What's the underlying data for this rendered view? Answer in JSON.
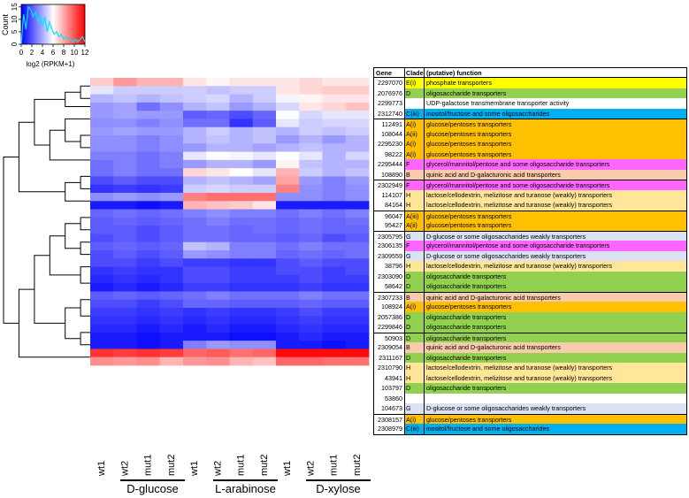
{
  "chart_data": {
    "type": "heatmap",
    "title": "",
    "colorscale": {
      "low": "#0000ff",
      "mid": "#ffffff",
      "high": "#ff0000"
    },
    "color_key": {
      "ylabel": "Count",
      "xlabel": "log2 (RPKM+1)",
      "x_ticks": [
        "0",
        "2",
        "4",
        "6",
        "8",
        "10",
        "12"
      ],
      "y_ticks": [
        "0",
        "5",
        "10",
        "15"
      ],
      "density": [
        0,
        12,
        6,
        15,
        14,
        11,
        13,
        9,
        12,
        7,
        11,
        5,
        9,
        6,
        4,
        5,
        3,
        4,
        2,
        3,
        2,
        2,
        1,
        2,
        1,
        2,
        3,
        1
      ]
    },
    "columns": [
      "wt1",
      "wt2",
      "mut1",
      "mut2",
      "wt1",
      "wt2",
      "mut1",
      "mut2",
      "wt1",
      "wt2",
      "mut1",
      "mut2"
    ],
    "groups": [
      {
        "label": "D-glucose",
        "span": [
          0,
          3
        ]
      },
      {
        "label": "L-arabinose",
        "span": [
          4,
          7
        ]
      },
      {
        "label": "D-xylose",
        "span": [
          8,
          11
        ]
      }
    ],
    "table_headers": {
      "gene": "Gene",
      "clade": "Clade",
      "function": "(putative) function"
    },
    "clade_colors": {
      "A(i)": "#ffc000",
      "A(ii)": "#ffc000",
      "A(iii)": "#ffc000",
      "B": "#f8cbad",
      "C(iii)": "#00b0f0",
      "D": "#92d050",
      "E(i)": "#ffff00",
      "F": "#ff66ff",
      "G": "#d9e1f2",
      "H": "#ffe699",
      "none": "#ffffff"
    },
    "row_groups": [
      4,
      6,
      3,
      2,
      6,
      4,
      8,
      2
    ],
    "rows": [
      {
        "gene": "2297070",
        "clade": "E(i)",
        "function": "phosphate transporters",
        "values": [
          0.6,
          0.7,
          0.65,
          0.65,
          0.55,
          0.52,
          0.55,
          0.55,
          0.55,
          0.58,
          0.55,
          0.55
        ]
      },
      {
        "gene": "2076976",
        "clade": "D",
        "function": "oligosaccharide transporters",
        "values": [
          0.45,
          0.4,
          0.4,
          0.4,
          0.4,
          0.38,
          0.4,
          0.4,
          0.55,
          0.58,
          0.6,
          0.6
        ]
      },
      {
        "gene": "2299773",
        "clade": "",
        "function": "UDP-galactose transmembrane transporter activity",
        "values": [
          0.35,
          0.38,
          0.35,
          0.38,
          0.4,
          0.42,
          0.35,
          0.4,
          0.48,
          0.52,
          0.55,
          0.55
        ]
      },
      {
        "gene": "2312740",
        "clade": "C(iii)",
        "function": "inositol/fructose and some oligosaccharides",
        "values": [
          0.3,
          0.32,
          0.22,
          0.28,
          0.35,
          0.38,
          0.3,
          0.35,
          0.42,
          0.55,
          0.58,
          0.62
        ]
      },
      {
        "gene": "112491",
        "clade": "A(i)",
        "function": "glucose/pentoses transporters",
        "values": [
          0.3,
          0.32,
          0.3,
          0.3,
          0.18,
          0.2,
          0.15,
          0.2,
          0.5,
          0.42,
          0.45,
          0.45
        ]
      },
      {
        "gene": "108044",
        "clade": "A(ii)",
        "function": "glucose/pentoses transporters",
        "values": [
          0.28,
          0.28,
          0.25,
          0.28,
          0.22,
          0.22,
          0.1,
          0.18,
          0.45,
          0.4,
          0.42,
          0.42
        ]
      },
      {
        "gene": "2295230",
        "clade": "A(i)",
        "function": "glucose/pentoses transporters",
        "values": [
          0.3,
          0.32,
          0.3,
          0.3,
          0.35,
          0.4,
          0.35,
          0.38,
          0.35,
          0.4,
          0.38,
          0.4
        ]
      },
      {
        "gene": "98222",
        "clade": "A(i)",
        "function": "glucose/pentoses transporters",
        "values": [
          0.28,
          0.28,
          0.25,
          0.28,
          0.35,
          0.38,
          0.35,
          0.38,
          0.3,
          0.35,
          0.3,
          0.35
        ]
      },
      {
        "gene": "2295444",
        "clade": "F",
        "function": "glycerol/mannitol/pentose and some oligosaccharide transporters",
        "values": [
          0.28,
          0.28,
          0.25,
          0.28,
          0.3,
          0.35,
          0.35,
          0.32,
          0.35,
          0.38,
          0.35,
          0.35
        ]
      },
      {
        "gene": "108890",
        "clade": "B",
        "function": "quinic acid and D-galacturonic acid transporters",
        "values": [
          0.25,
          0.25,
          0.22,
          0.25,
          0.45,
          0.5,
          0.48,
          0.45,
          0.5,
          0.45,
          0.35,
          0.42
        ]
      },
      {
        "gene": "2302949",
        "clade": "F",
        "function": "glycerol/mannitol/pentose and some oligosaccharide transporters",
        "values": [
          0.22,
          0.25,
          0.22,
          0.25,
          0.3,
          0.35,
          0.35,
          0.3,
          0.52,
          0.38,
          0.35,
          0.35
        ]
      },
      {
        "gene": "114107",
        "clade": "H",
        "function": "lactose/cellodextrin, melizitose and turanose (weakly) transporters",
        "values": [
          0.22,
          0.25,
          0.22,
          0.22,
          0.58,
          0.55,
          0.5,
          0.45,
          0.65,
          0.4,
          0.35,
          0.38
        ]
      },
      {
        "gene": "84164",
        "clade": "H",
        "function": "lactose/cellodextrin, melizitose and turanose (weakly) transporters",
        "values": [
          0.15,
          0.18,
          0.15,
          0.15,
          0.35,
          0.38,
          0.35,
          0.32,
          0.68,
          0.3,
          0.25,
          0.3
        ]
      },
      {
        "gene": "96047",
        "clade": "A(iii)",
        "function": "glucose/pentoses transporters",
        "values": [
          0.1,
          0.12,
          0.1,
          0.12,
          0.4,
          0.42,
          0.4,
          0.4,
          0.75,
          0.28,
          0.25,
          0.28
        ]
      },
      {
        "gene": "95427",
        "clade": "A(ii)",
        "function": "glucose/pentoses transporters",
        "values": [
          0.28,
          0.3,
          0.28,
          0.3,
          0.75,
          0.78,
          0.78,
          0.78,
          0.28,
          0.28,
          0.25,
          0.28
        ]
      },
      {
        "gene": "2305795",
        "clade": "G",
        "function": "D-glucose or some oligosaccharides weakly transporters",
        "values": [
          0.05,
          0.05,
          0.03,
          0.05,
          0.65,
          0.62,
          0.6,
          0.55,
          0.05,
          0.05,
          0.05,
          0.05
        ]
      },
      {
        "gene": "2306135",
        "clade": "F",
        "function": "glycerol/mannitol/pentose and some oligosaccharide transporters",
        "values": [
          0.2,
          0.22,
          0.2,
          0.22,
          0.25,
          0.28,
          0.25,
          0.25,
          0.22,
          0.25,
          0.22,
          0.25
        ]
      },
      {
        "gene": "2309559",
        "clade": "G",
        "function": "D-glucose or some oligosaccharides weakly transporters",
        "values": [
          0.18,
          0.2,
          0.18,
          0.2,
          0.22,
          0.25,
          0.22,
          0.22,
          0.2,
          0.22,
          0.2,
          0.22
        ]
      },
      {
        "gene": "38796",
        "clade": "H",
        "function": "lactose/cellodextrin, melizitose and turanose (weakly) transporters",
        "values": [
          0.18,
          0.18,
          0.15,
          0.18,
          0.22,
          0.22,
          0.2,
          0.22,
          0.2,
          0.22,
          0.2,
          0.2
        ]
      },
      {
        "gene": "2303090",
        "clade": "D",
        "function": "oligosaccharide transporters",
        "values": [
          0.15,
          0.18,
          0.15,
          0.18,
          0.22,
          0.22,
          0.2,
          0.2,
          0.18,
          0.2,
          0.15,
          0.18
        ]
      },
      {
        "gene": "58642",
        "clade": "D",
        "function": "oligosaccharide transporters",
        "values": [
          0.18,
          0.2,
          0.18,
          0.2,
          0.38,
          0.35,
          0.25,
          0.25,
          0.22,
          0.25,
          0.22,
          0.22
        ]
      },
      {
        "gene": "2307233",
        "clade": "B",
        "function": "quinic acid and D-galacturonic acid transporters",
        "values": [
          0.15,
          0.18,
          0.15,
          0.18,
          0.3,
          0.28,
          0.25,
          0.25,
          0.2,
          0.22,
          0.2,
          0.22
        ]
      },
      {
        "gene": "108924",
        "clade": "A(i)",
        "function": "glucose/pentoses transporters",
        "values": [
          0.15,
          0.15,
          0.12,
          0.15,
          0.12,
          0.12,
          0.1,
          0.1,
          0.15,
          0.18,
          0.15,
          0.15
        ]
      },
      {
        "gene": "2057386",
        "clade": "D",
        "function": "oligosaccharide transporters",
        "values": [
          0.1,
          0.12,
          0.1,
          0.1,
          0.15,
          0.15,
          0.12,
          0.12,
          0.15,
          0.15,
          0.12,
          0.15
        ]
      },
      {
        "gene": "2299846",
        "clade": "D",
        "function": "oligosaccharide transporters",
        "values": [
          0.08,
          0.1,
          0.08,
          0.1,
          0.15,
          0.15,
          0.12,
          0.12,
          0.12,
          0.15,
          0.12,
          0.12
        ]
      },
      {
        "gene": "50903",
        "clade": "D",
        "function": "oligosaccharide transporters",
        "values": [
          0.05,
          0.08,
          0.05,
          0.08,
          0.12,
          0.12,
          0.1,
          0.1,
          0.1,
          0.12,
          0.1,
          0.1
        ]
      },
      {
        "gene": "2309054",
        "clade": "B",
        "function": "quinic acid and D-galacturonic acid transporters",
        "values": [
          0.18,
          0.2,
          0.18,
          0.2,
          0.22,
          0.25,
          0.22,
          0.22,
          0.22,
          0.25,
          0.22,
          0.22
        ]
      },
      {
        "gene": "2311167",
        "clade": "D",
        "function": "oligosaccharide transporters",
        "values": [
          0.15,
          0.15,
          0.12,
          0.15,
          0.2,
          0.2,
          0.18,
          0.18,
          0.18,
          0.2,
          0.18,
          0.18
        ]
      },
      {
        "gene": "2310790",
        "clade": "H",
        "function": "lactose/cellodextrin, melizitose and turanose (weakly) transporters",
        "values": [
          0.12,
          0.12,
          0.1,
          0.12,
          0.1,
          0.12,
          0.1,
          0.1,
          0.12,
          0.15,
          0.12,
          0.12
        ]
      },
      {
        "gene": "43941",
        "clade": "H",
        "function": "lactose/cellodextrin, melizitose and turanose (weakly) transporters",
        "values": [
          0.1,
          0.1,
          0.08,
          0.1,
          0.08,
          0.1,
          0.08,
          0.08,
          0.1,
          0.12,
          0.1,
          0.1
        ]
      },
      {
        "gene": "103797",
        "clade": "D",
        "function": "oligosaccharide transporters",
        "values": [
          0.08,
          0.08,
          0.05,
          0.08,
          0.05,
          0.08,
          0.05,
          0.05,
          0.08,
          0.1,
          0.08,
          0.08
        ]
      },
      {
        "gene": "53860",
        "clade": "",
        "function": "",
        "values": [
          0.05,
          0.05,
          0.03,
          0.05,
          0.05,
          0.05,
          0.03,
          0.03,
          0.05,
          0.08,
          0.05,
          0.05
        ]
      },
      {
        "gene": "104673",
        "clade": "G",
        "function": "D-glucose or some oligosaccharides weakly transporters",
        "values": [
          0.05,
          0.05,
          0.03,
          0.05,
          0.25,
          0.3,
          0.28,
          0.28,
          0.05,
          0.05,
          0.03,
          0.05
        ]
      },
      {
        "gene": "2308157",
        "clade": "A(i)",
        "function": "glucose/pentoses transporters",
        "values": [
          0.9,
          0.88,
          0.9,
          0.88,
          0.8,
          0.82,
          0.78,
          0.8,
          0.98,
          0.98,
          0.98,
          0.98
        ]
      },
      {
        "gene": "2308979",
        "clade": "C(iii)",
        "function": "inositol/fructose and some oligosaccharides",
        "values": [
          0.72,
          0.7,
          0.72,
          0.65,
          0.7,
          0.72,
          0.65,
          0.62,
          0.8,
          0.8,
          0.78,
          0.78
        ]
      }
    ]
  }
}
